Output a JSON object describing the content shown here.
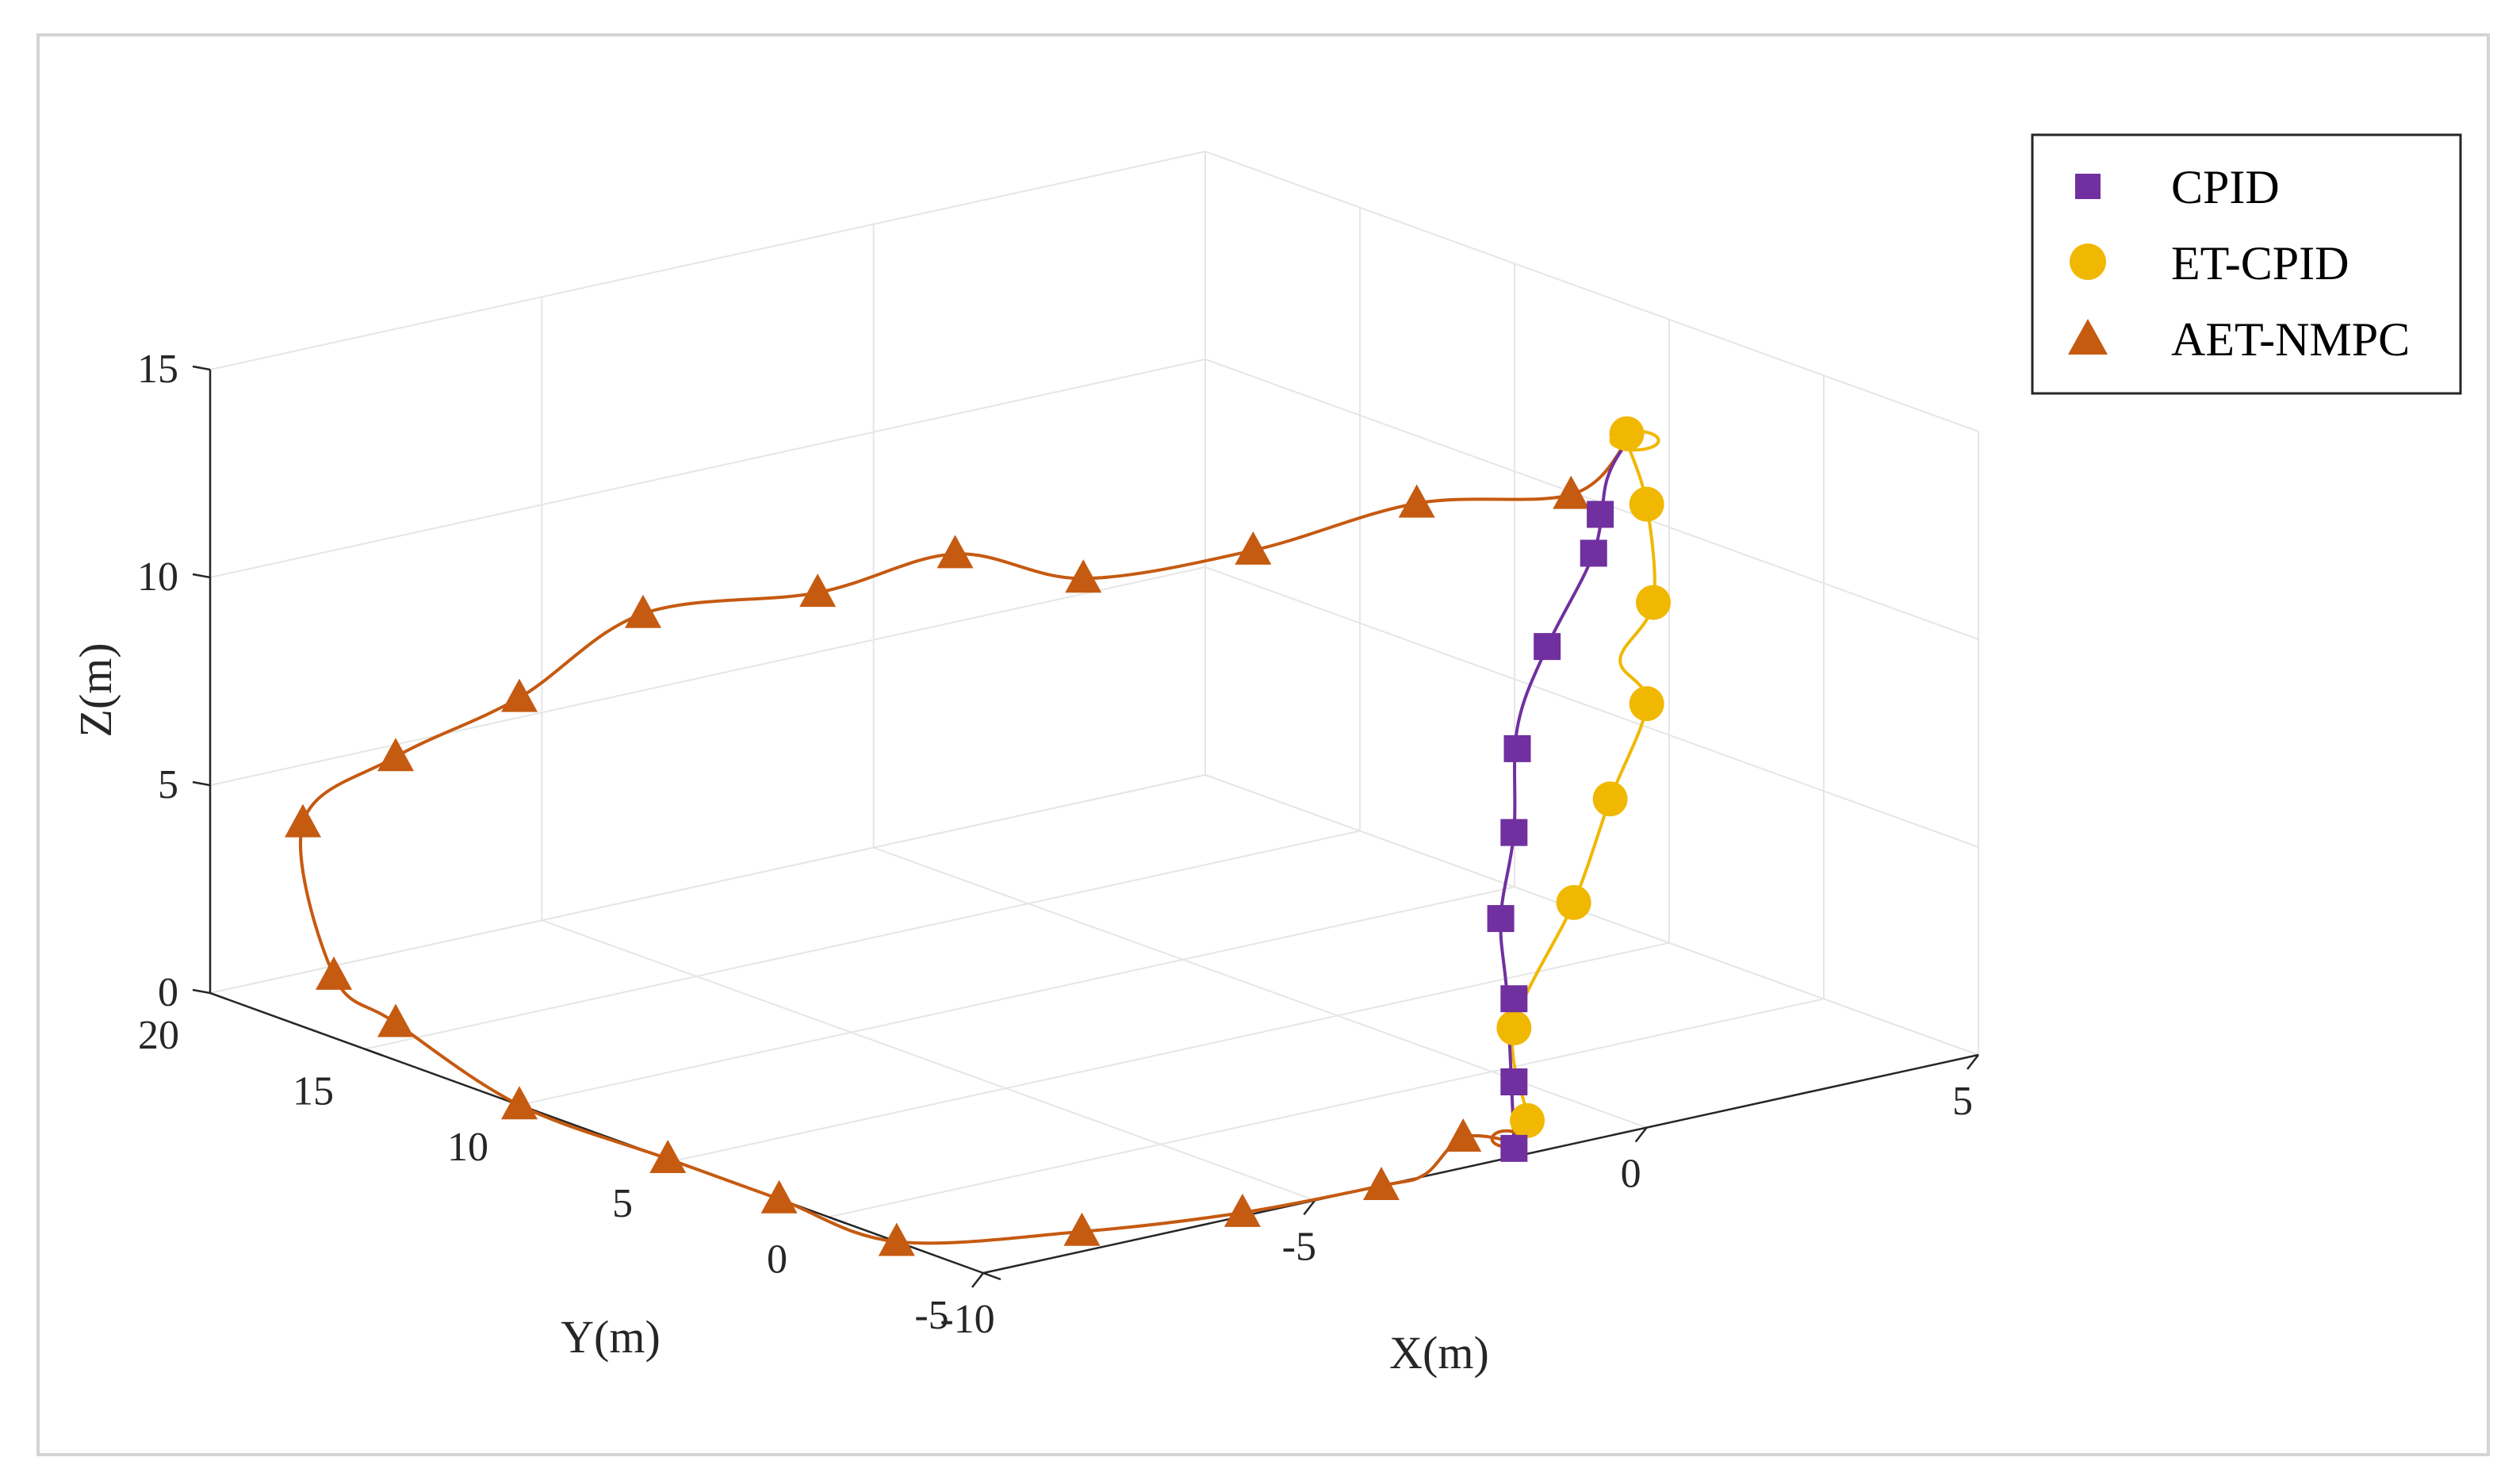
{
  "chart_data": {
    "type": "line",
    "title": "",
    "xlabel": "X(m)",
    "ylabel": "Y(m)",
    "zlabel": "Z(m)",
    "xlim": [
      -10,
      5
    ],
    "ylim": [
      -5,
      20
    ],
    "zlim": [
      0,
      15
    ],
    "x_ticks": [
      -10,
      -5,
      0,
      5
    ],
    "y_ticks": [
      -5,
      0,
      5,
      10,
      15,
      20
    ],
    "z_ticks": [
      0,
      5,
      10,
      15
    ],
    "grid": true,
    "legend_position": "top-right",
    "colors": {
      "CPID": "#7030a0",
      "ET-CPID": "#f0b800",
      "AET-NMPC": "#c55a11"
    },
    "series": [
      {
        "name": "CPID",
        "marker": "square",
        "points": [
          {
            "x": -2,
            "y": -5,
            "z": 0.2
          },
          {
            "x": -2,
            "y": -5,
            "z": 1.8
          },
          {
            "x": -2,
            "y": -5,
            "z": 3.8
          },
          {
            "x": -2.2,
            "y": -5,
            "z": 5.8
          },
          {
            "x": -2,
            "y": -5,
            "z": 7.8
          },
          {
            "x": -1.95,
            "y": -5,
            "z": 9.8
          },
          {
            "x": -1.5,
            "y": -5,
            "z": 12.1
          },
          {
            "x": -0.8,
            "y": -5,
            "z": 14.1
          },
          {
            "x": -0.7,
            "y": -5,
            "z": 15
          }
        ]
      },
      {
        "name": "ET-CPID",
        "marker": "circle",
        "points": [
          {
            "x": -1.8,
            "y": -5,
            "z": 0.8
          },
          {
            "x": -2,
            "y": -5,
            "z": 3.1
          },
          {
            "x": -1.1,
            "y": -5,
            "z": 5.8
          },
          {
            "x": -0.55,
            "y": -5,
            "z": 8.1
          },
          {
            "x": 0,
            "y": -5,
            "z": 10.2
          },
          {
            "x": 0.1,
            "y": -5,
            "z": 12.6
          },
          {
            "x": 0,
            "y": -5,
            "z": 15
          },
          {
            "x": -0.3,
            "y": -5,
            "z": 16.8
          }
        ]
      },
      {
        "name": "AET-NMPC",
        "marker": "triangle",
        "points": [
          {
            "x": -2.3,
            "y": -4,
            "z": 0.3
          },
          {
            "x": -4,
            "y": -5,
            "z": 0
          },
          {
            "x": -6,
            "y": -4.8,
            "z": 0
          },
          {
            "x": -8,
            "y": -3.9,
            "z": 0
          },
          {
            "x": -10,
            "y": -2.2,
            "z": 0
          },
          {
            "x": -10,
            "y": 1.6,
            "z": 0
          },
          {
            "x": -10,
            "y": 5.2,
            "z": 0
          },
          {
            "x": -10,
            "y": 10,
            "z": 0
          },
          {
            "x": -10,
            "y": 14,
            "z": 0.9
          },
          {
            "x": -10,
            "y": 16,
            "z": 1.5
          },
          {
            "x": -10,
            "y": 17,
            "z": 4.9
          },
          {
            "x": -10,
            "y": 14,
            "z": 7.3
          },
          {
            "x": -10,
            "y": 10,
            "z": 9.8
          },
          {
            "x": -10,
            "y": 6,
            "z": 12.9
          },
          {
            "x": -9,
            "y": 2.5,
            "z": 14
          },
          {
            "x": -8,
            "y": 0.2,
            "z": 15.2
          },
          {
            "x": -7,
            "y": -1.8,
            "z": 14.8
          },
          {
            "x": -5,
            "y": -3,
            "z": 15.1
          },
          {
            "x": -3,
            "y": -4,
            "z": 15.8
          },
          {
            "x": -1,
            "y": -4.7,
            "z": 15.5
          }
        ]
      }
    ],
    "curves": {
      "CPID": [
        {
          "x": -2,
          "y": -5,
          "z": 0.4
        },
        {
          "x": -2.1,
          "y": -5,
          "z": 3.8
        },
        {
          "x": -2.2,
          "y": -5,
          "z": 5.8
        },
        {
          "x": -2,
          "y": -5,
          "z": 7.8
        },
        {
          "x": -1.95,
          "y": -5,
          "z": 10.3
        },
        {
          "x": -1.5,
          "y": -5,
          "z": 12.1
        },
        {
          "x": -0.8,
          "y": -5,
          "z": 14.1
        },
        {
          "x": -0.6,
          "y": -5,
          "z": 15.8
        },
        {
          "x": -0.3,
          "y": -5,
          "z": 16.6
        }
      ],
      "ET-CPID": [
        {
          "x": -2,
          "y": -5,
          "z": 0.1
        },
        {
          "x": -1.8,
          "y": -5,
          "z": 0.8
        },
        {
          "x": -2,
          "y": -5,
          "z": 3.1
        },
        {
          "x": -1.1,
          "y": -5,
          "z": 5.8
        },
        {
          "x": -0.55,
          "y": -5,
          "z": 8.1
        },
        {
          "x": 0,
          "y": -5,
          "z": 10.2
        },
        {
          "x": -0.4,
          "y": -5,
          "z": 11.4
        },
        {
          "x": 0.1,
          "y": -5,
          "z": 12.6
        },
        {
          "x": 0,
          "y": -5,
          "z": 15
        },
        {
          "x": -0.3,
          "y": -5,
          "z": 16.6
        }
      ],
      "AET-NMPC": [
        {
          "x": -1.6,
          "y": -4.2,
          "z": 0
        },
        {
          "x": -2.3,
          "y": -4,
          "z": 0.3
        },
        {
          "x": -3.3,
          "y": -4.9,
          "z": 0
        },
        {
          "x": -4,
          "y": -5,
          "z": 0
        },
        {
          "x": -6,
          "y": -4.8,
          "z": 0
        },
        {
          "x": -8,
          "y": -3.9,
          "z": 0
        },
        {
          "x": -10,
          "y": -2.2,
          "z": 0
        },
        {
          "x": -10,
          "y": 1.6,
          "z": 0
        },
        {
          "x": -10,
          "y": 5.2,
          "z": 0
        },
        {
          "x": -10,
          "y": 10,
          "z": 0
        },
        {
          "x": -10,
          "y": 14,
          "z": 0.9
        },
        {
          "x": -10,
          "y": 16,
          "z": 1.5
        },
        {
          "x": -10,
          "y": 17,
          "z": 4.9
        },
        {
          "x": -10,
          "y": 14,
          "z": 7.3
        },
        {
          "x": -10,
          "y": 10,
          "z": 9.8
        },
        {
          "x": -10,
          "y": 6,
          "z": 12.9
        },
        {
          "x": -9,
          "y": 2.5,
          "z": 14
        },
        {
          "x": -8,
          "y": 0.2,
          "z": 15.2
        },
        {
          "x": -7,
          "y": -1.8,
          "z": 14.8
        },
        {
          "x": -5,
          "y": -3,
          "z": 15.1
        },
        {
          "x": -3,
          "y": -4,
          "z": 15.8
        },
        {
          "x": -1,
          "y": -4.7,
          "z": 15.5
        },
        {
          "x": -0.3,
          "y": -5,
          "z": 16.6
        }
      ]
    }
  }
}
